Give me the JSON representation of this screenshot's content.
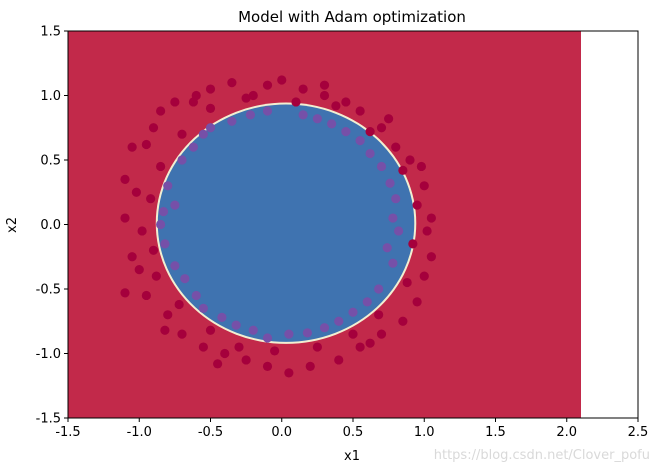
{
  "chart_data": {
    "type": "scatter",
    "title": "Model with Adam optimization",
    "xlabel": "x1",
    "ylabel": "x2",
    "xlim": [
      -1.5,
      2.5
    ],
    "ylim": [
      -1.5,
      1.5
    ],
    "xticks": [
      "-1.5",
      "-1.0",
      "-0.5",
      "0.0",
      "0.5",
      "1.0",
      "1.5",
      "2.0",
      "2.5"
    ],
    "yticks": [
      "-1.5",
      "-1.0",
      "-0.5",
      "0.0",
      "0.5",
      "1.0",
      "1.5"
    ],
    "decision_region": {
      "x_extent": [
        -1.5,
        2.1
      ],
      "y_extent": [
        -1.5,
        1.5
      ],
      "outer_class_color": "#c2294a",
      "inner_class_color": "#3f73b0",
      "boundary_center": [
        0.03,
        0.01
      ],
      "boundary_radius": [
        0.9,
        0.92
      ]
    },
    "series": [
      {
        "class": 0,
        "color": "#a5003c",
        "points": [
          [
            -1.1,
            -0.53
          ],
          [
            -1.05,
            -0.25
          ],
          [
            -1.1,
            0.05
          ],
          [
            -1.1,
            0.35
          ],
          [
            -1.05,
            0.6
          ],
          [
            -0.95,
            0.62
          ],
          [
            -0.9,
            0.75
          ],
          [
            -0.85,
            0.88
          ],
          [
            -0.75,
            0.95
          ],
          [
            -0.6,
            1.0
          ],
          [
            -0.5,
            1.05
          ],
          [
            -0.35,
            1.1
          ],
          [
            -0.2,
            1.0
          ],
          [
            -0.1,
            1.08
          ],
          [
            0.0,
            1.12
          ],
          [
            0.15,
            1.05
          ],
          [
            0.3,
            1.0
          ],
          [
            0.45,
            0.95
          ],
          [
            0.55,
            0.88
          ],
          [
            0.7,
            0.75
          ],
          [
            0.8,
            0.6
          ],
          [
            0.9,
            0.5
          ],
          [
            1.0,
            0.3
          ],
          [
            1.05,
            0.05
          ],
          [
            1.05,
            -0.25
          ],
          [
            1.0,
            -0.4
          ],
          [
            0.95,
            -0.6
          ],
          [
            0.85,
            -0.75
          ],
          [
            0.7,
            -0.85
          ],
          [
            0.55,
            -0.95
          ],
          [
            0.4,
            -1.05
          ],
          [
            0.2,
            -1.1
          ],
          [
            0.05,
            -1.15
          ],
          [
            -0.1,
            -1.1
          ],
          [
            -0.25,
            -1.05
          ],
          [
            -0.4,
            -1.0
          ],
          [
            -0.55,
            -0.95
          ],
          [
            -0.7,
            -0.85
          ],
          [
            -0.8,
            -0.7
          ],
          [
            -0.95,
            -0.55
          ],
          [
            -1.0,
            -0.35
          ],
          [
            -0.9,
            -0.2
          ],
          [
            -0.92,
            0.2
          ],
          [
            -0.85,
            0.45
          ],
          [
            -0.7,
            0.7
          ],
          [
            -0.5,
            0.9
          ],
          [
            -0.25,
            0.98
          ],
          [
            0.1,
            0.95
          ],
          [
            0.38,
            0.92
          ],
          [
            0.62,
            0.72
          ],
          [
            0.85,
            0.42
          ],
          [
            0.95,
            0.15
          ],
          [
            0.92,
            -0.15
          ],
          [
            0.88,
            -0.45
          ],
          [
            0.68,
            -0.7
          ],
          [
            0.5,
            -0.85
          ],
          [
            0.25,
            -0.95
          ],
          [
            -0.05,
            -0.98
          ],
          [
            -0.3,
            -0.95
          ],
          [
            -0.5,
            -0.82
          ],
          [
            -0.72,
            -0.62
          ],
          [
            -0.88,
            -0.4
          ],
          [
            -1.02,
            0.25
          ],
          [
            -0.98,
            -0.05
          ],
          [
            0.98,
            0.45
          ],
          [
            1.02,
            -0.05
          ],
          [
            0.75,
            0.82
          ],
          [
            -0.62,
            0.95
          ],
          [
            0.3,
            1.08
          ],
          [
            -0.45,
            -1.08
          ],
          [
            0.62,
            -0.92
          ],
          [
            -0.82,
            -0.82
          ]
        ]
      },
      {
        "class": 1,
        "color": "#7650a8",
        "points": [
          [
            -0.85,
            0.0
          ],
          [
            -0.8,
            0.3
          ],
          [
            -0.7,
            0.5
          ],
          [
            -0.55,
            0.7
          ],
          [
            -0.35,
            0.8
          ],
          [
            -0.1,
            0.88
          ],
          [
            0.15,
            0.85
          ],
          [
            0.35,
            0.78
          ],
          [
            0.55,
            0.65
          ],
          [
            0.7,
            0.45
          ],
          [
            0.8,
            0.2
          ],
          [
            0.82,
            -0.05
          ],
          [
            0.78,
            -0.3
          ],
          [
            0.68,
            -0.5
          ],
          [
            0.5,
            -0.68
          ],
          [
            0.3,
            -0.8
          ],
          [
            0.05,
            -0.85
          ],
          [
            -0.2,
            -0.82
          ],
          [
            -0.42,
            -0.72
          ],
          [
            -0.6,
            -0.55
          ],
          [
            -0.75,
            -0.32
          ],
          [
            -0.82,
            -0.15
          ],
          [
            -0.75,
            0.15
          ],
          [
            -0.62,
            0.6
          ],
          [
            -0.22,
            0.85
          ],
          [
            0.25,
            0.82
          ],
          [
            0.62,
            0.55
          ],
          [
            0.76,
            0.32
          ],
          [
            0.74,
            -0.18
          ],
          [
            0.6,
            -0.6
          ],
          [
            0.18,
            -0.84
          ],
          [
            -0.32,
            -0.78
          ],
          [
            -0.68,
            -0.42
          ],
          [
            -0.5,
            0.75
          ],
          [
            0.45,
            0.72
          ],
          [
            0.78,
            0.05
          ],
          [
            0.4,
            -0.75
          ],
          [
            -0.1,
            -0.88
          ],
          [
            -0.55,
            -0.65
          ],
          [
            -0.83,
            0.1
          ]
        ]
      }
    ]
  },
  "watermark": "https://blog.csdn.net/Clover_pofu"
}
